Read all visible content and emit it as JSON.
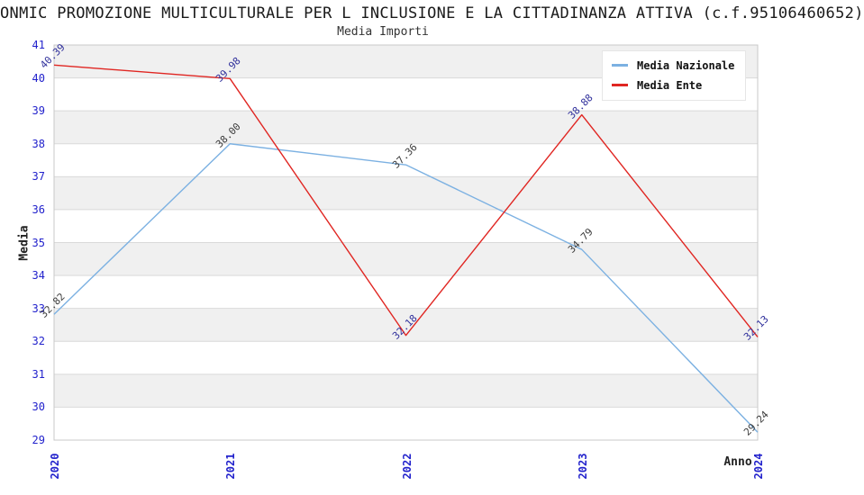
{
  "header": {
    "title": "ONMIC PROMOZIONE MULTICULTURALE PER L INCLUSIONE E LA CITTADINANZA ATTIVA (c.f.95106460652)",
    "subtitle": "Media Importi"
  },
  "chart_data": {
    "type": "line",
    "x": [
      "2020",
      "2021",
      "2022",
      "2023",
      "2024"
    ],
    "xlabel": "Anno",
    "ylabel": "Media",
    "ylim": [
      29,
      41
    ],
    "ytick_step": 1,
    "grid": "horizontal-lines-with-alternating-bands",
    "legend_position": "top-right",
    "series": [
      {
        "name": "Media Nazionale",
        "values": [
          32.82,
          38.0,
          37.36,
          34.79,
          29.24
        ],
        "color": "#7cb1e2",
        "label_color": "#3c3c3c"
      },
      {
        "name": "Media Ente",
        "values": [
          40.39,
          39.98,
          32.18,
          38.88,
          32.13
        ],
        "color": "#e02622",
        "label_color": "#31319c"
      }
    ],
    "colors": {
      "tick_label": "#2222cc",
      "band": "#f0f0f0",
      "gridline": "#d9d9d9",
      "plot_border": "#c8c8c8"
    }
  }
}
